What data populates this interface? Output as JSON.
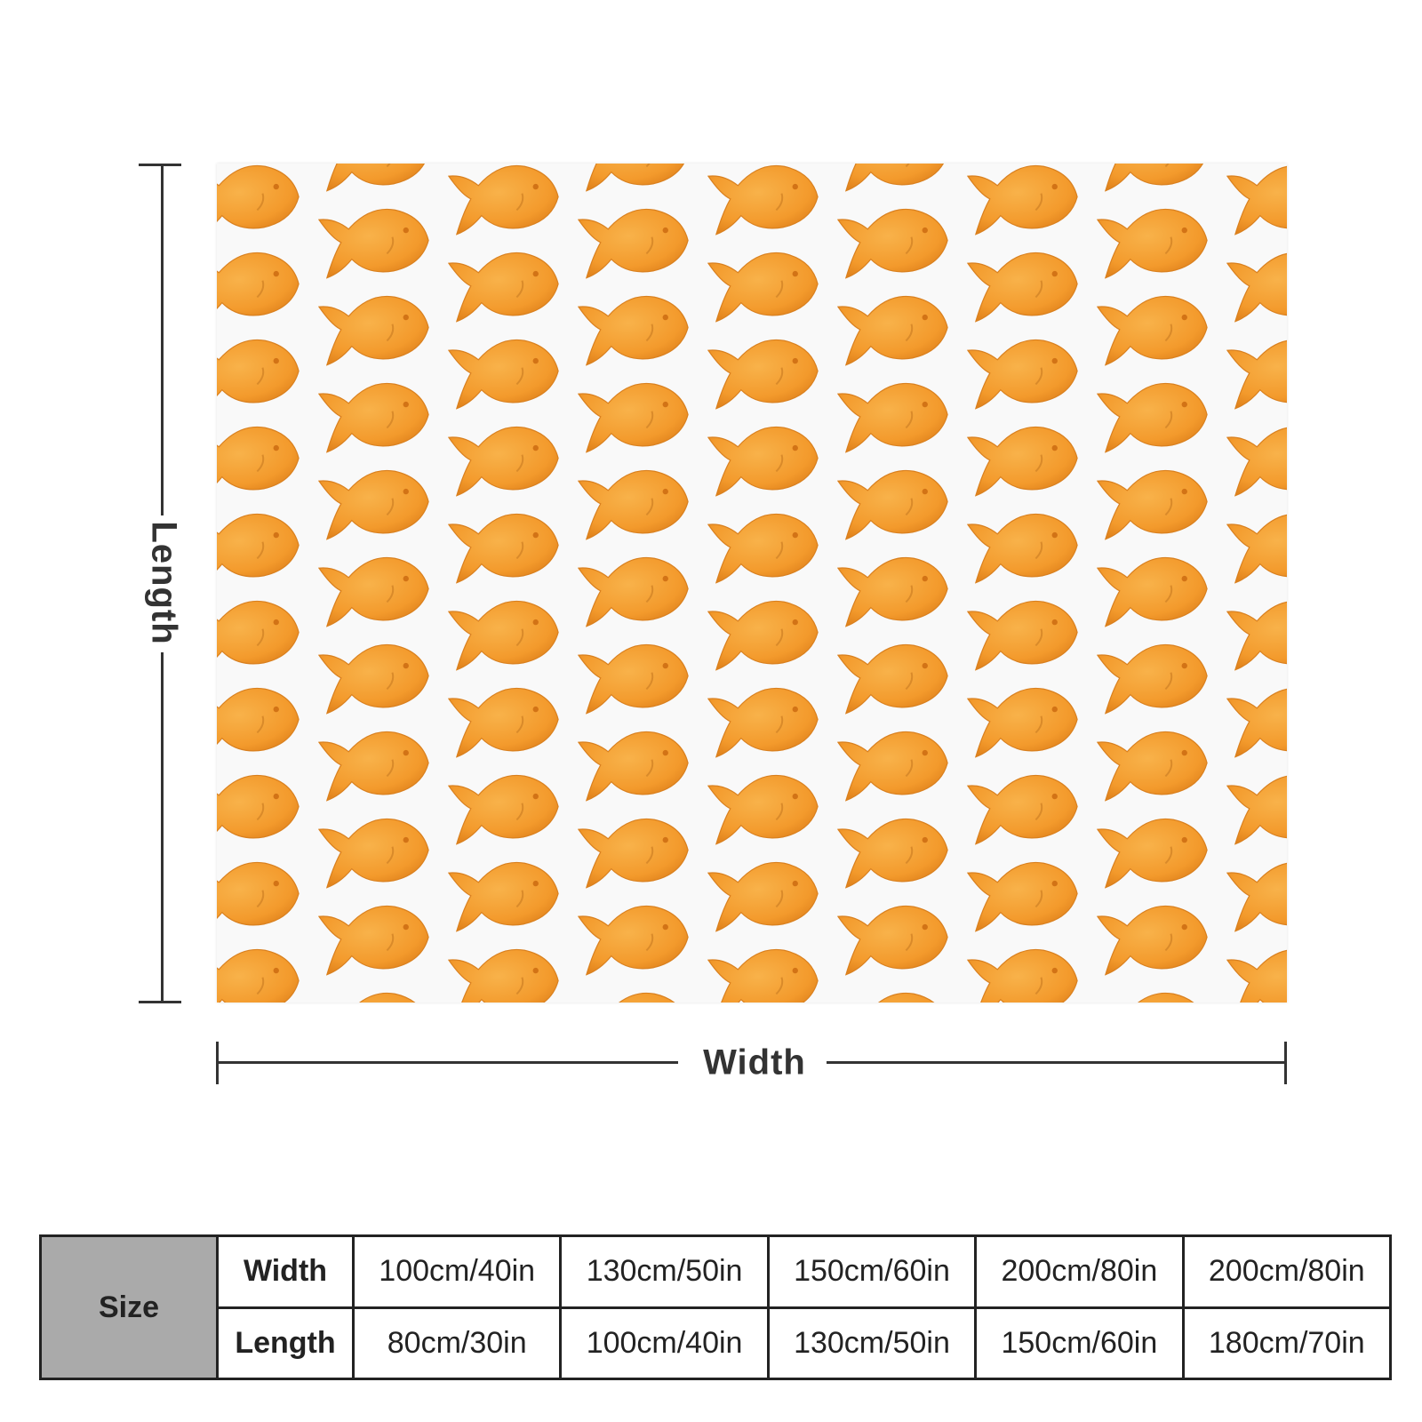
{
  "product": {
    "pattern": "goldfish-cracker-pattern",
    "background_color": "#ffffff",
    "cracker_color": "#f39a2c"
  },
  "diagram": {
    "length_label": "Length",
    "width_label": "Width"
  },
  "size_table": {
    "header": "Size",
    "rows": [
      {
        "label": "Width",
        "values": [
          "100cm/40in",
          "130cm/50in",
          "150cm/60in",
          "200cm/80in",
          "200cm/80in"
        ]
      },
      {
        "label": "Length",
        "values": [
          "80cm/30in",
          "100cm/40in",
          "130cm/50in",
          "150cm/60in",
          "180cm/70in"
        ]
      }
    ]
  }
}
